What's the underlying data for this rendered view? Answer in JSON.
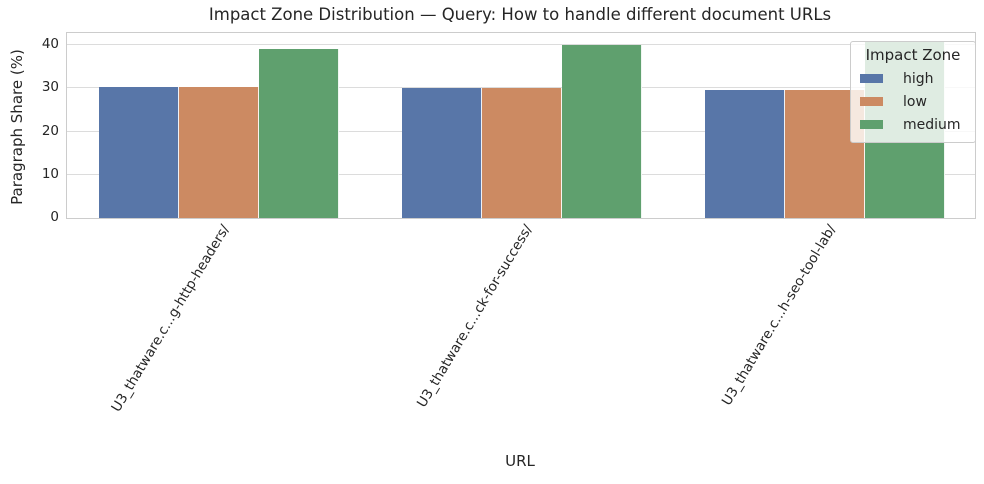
{
  "chart_data": {
    "type": "bar",
    "title": "Impact Zone Distribution — Query: How to handle different document URLs",
    "xlabel": "URL",
    "ylabel": "Paragraph Share (%)",
    "legend_title": "Impact Zone",
    "legend_position": "upper right",
    "grid": true,
    "ylim": [
      0,
      42.8
    ],
    "yticks": [
      0,
      10,
      20,
      30,
      40
    ],
    "categories": [
      "U3_thatware.c...g-http-headers/",
      "U3_thatware.c...ck-for-success/",
      "U3_thatware.c...h-seo-tool-lab/"
    ],
    "series": [
      {
        "name": "high",
        "color": "#5876a8",
        "values": [
          30.4,
          30.0,
          29.6
        ]
      },
      {
        "name": "low",
        "color": "#cc8a62",
        "values": [
          30.4,
          30.0,
          29.6
        ]
      },
      {
        "name": "medium",
        "color": "#5fa06e",
        "values": [
          39.1,
          40.0,
          40.7
        ]
      }
    ]
  }
}
